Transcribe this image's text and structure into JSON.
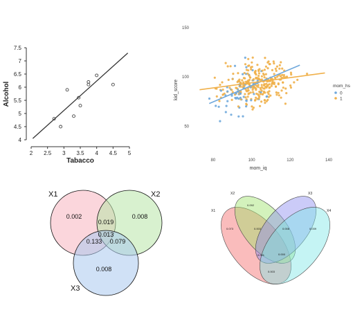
{
  "chart_data": [
    {
      "type": "scatter",
      "xlabel": "Tabacco",
      "ylabel": "Alcohol",
      "xlim": [
        2,
        5
      ],
      "ylim": [
        4,
        7.5
      ],
      "xticks": [
        "2",
        "2.5",
        "3",
        "3.5",
        "4",
        "4.5",
        "5"
      ],
      "yticks": [
        "4",
        "4.5",
        "5",
        "5.5",
        "6",
        "6.5",
        "7",
        "7.5"
      ],
      "points": [
        {
          "x": 2.7,
          "y": 4.8
        },
        {
          "x": 2.9,
          "y": 4.5
        },
        {
          "x": 3.1,
          "y": 5.9
        },
        {
          "x": 3.3,
          "y": 4.9
        },
        {
          "x": 3.45,
          "y": 5.6
        },
        {
          "x": 3.5,
          "y": 5.3
        },
        {
          "x": 3.75,
          "y": 6.1
        },
        {
          "x": 3.75,
          "y": 6.2
        },
        {
          "x": 4.0,
          "y": 6.45
        },
        {
          "x": 4.5,
          "y": 6.1
        }
      ],
      "fit_line": {
        "x": [
          2.05,
          4.95
        ],
        "y": [
          4.05,
          7.3
        ]
      }
    },
    {
      "type": "scatter",
      "xlabel": "mom_iq",
      "ylabel": "kid_score",
      "xlim": [
        70,
        140
      ],
      "ylim": [
        20,
        150
      ],
      "xticks": [
        "80",
        "100",
        "120",
        "140"
      ],
      "yticks": [
        "50",
        "100",
        "150"
      ],
      "legend": {
        "title": "mom_hs",
        "items": [
          "0",
          "1"
        ],
        "position": "right"
      },
      "colors": {
        "0": "#6fa8dc",
        "1": "#f0b04a"
      },
      "fit_lines": [
        {
          "series": "0",
          "x": [
            78,
            125
          ],
          "y": [
            73,
            112
          ]
        },
        {
          "series": "1",
          "x": [
            73,
            138
          ],
          "y": [
            87,
            104
          ]
        }
      ]
    },
    {
      "type": "venn",
      "sets": [
        "X1",
        "X2",
        "X3"
      ],
      "colors": [
        "#f8b4c0",
        "#b8e6a8",
        "#aac8ee"
      ],
      "regions": {
        "x1_only": "0.002",
        "x2_only": "0.008",
        "x3_only": "0.008",
        "x1_x2": "0.019",
        "x1_x3": "0.133",
        "x2_x3": "0.079",
        "all": "0.013"
      }
    },
    {
      "type": "venn",
      "sets": [
        "X1",
        "X2",
        "X3",
        "X4"
      ],
      "colors": [
        "#f46a6a",
        "#9de36a",
        "#8c8cf0",
        "#7ee6e6"
      ],
      "labels": [
        "0.073",
        "0.092",
        "0.039",
        "0.003",
        "0.008",
        "0.001",
        "0.000",
        "0.003"
      ]
    }
  ]
}
